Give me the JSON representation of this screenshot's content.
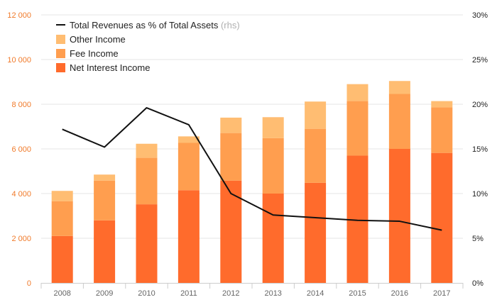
{
  "chart_data": {
    "type": "bar",
    "stacked": true,
    "categories": [
      "2008",
      "2009",
      "2010",
      "2011",
      "2012",
      "2013",
      "2014",
      "2015",
      "2016",
      "2017"
    ],
    "series": [
      {
        "name": "Net Interest Income",
        "color": "#ff6b2c",
        "values": [
          2100,
          2800,
          3520,
          4150,
          4580,
          4000,
          4480,
          5700,
          6000,
          5820
        ]
      },
      {
        "name": "Fee Income",
        "color": "#ff9e4f",
        "values": [
          1560,
          1780,
          2080,
          2120,
          2130,
          2480,
          2420,
          2440,
          2460,
          2040
        ]
      },
      {
        "name": "Other Income",
        "color": "#ffbd72",
        "values": [
          460,
          270,
          630,
          290,
          690,
          940,
          1220,
          760,
          580,
          280
        ]
      }
    ],
    "line_series": {
      "name": "Total Revenues as % of Total Assets",
      "suffix": "(rhs)",
      "color": "#111111",
      "axis": "right",
      "values": [
        17.2,
        15.2,
        19.6,
        17.7,
        10.0,
        7.6,
        7.3,
        7.0,
        6.9,
        5.9
      ]
    },
    "y_left": {
      "min": 0,
      "max": 12000,
      "ticks": [
        "0",
        "2 000",
        "4 000",
        "6 000",
        "8 000",
        "10 000",
        "12 000"
      ]
    },
    "y_right": {
      "min": 0,
      "max": 30,
      "ticks": [
        "0%",
        "5%",
        "10%",
        "15%",
        "20%",
        "25%",
        "30%"
      ]
    },
    "legend_placement": "top-left",
    "grid": true
  }
}
